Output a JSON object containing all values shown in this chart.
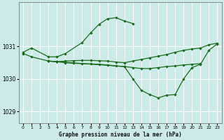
{
  "background_color": "#cceae7",
  "grid_color": "#aaddcc",
  "line_color": "#1a6b1a",
  "title": "Graphe pression niveau de la mer (hPa)",
  "xlim": [
    -0.5,
    23.5
  ],
  "ylim": [
    1028.65,
    1032.35
  ],
  "yticks": [
    1029,
    1030,
    1031
  ],
  "xticks": [
    0,
    1,
    2,
    3,
    4,
    5,
    6,
    7,
    8,
    9,
    10,
    11,
    12,
    13,
    14,
    15,
    16,
    17,
    18,
    19,
    20,
    21,
    22,
    23
  ],
  "serA_x": [
    0,
    1,
    3,
    4,
    5,
    7,
    8,
    9,
    10,
    11,
    12,
    13
  ],
  "serA_y": [
    1030.82,
    1030.95,
    1030.68,
    1030.68,
    1030.78,
    1031.12,
    1031.42,
    1031.68,
    1031.85,
    1031.88,
    1031.78,
    1031.7
  ],
  "serB_x": [
    0,
    1,
    3,
    4,
    5,
    6,
    7,
    8,
    9,
    10,
    11,
    12,
    13,
    14,
    15,
    16,
    17,
    18,
    19,
    20,
    21,
    22,
    23
  ],
  "serB_y": [
    1030.78,
    1030.68,
    1030.55,
    1030.53,
    1030.55,
    1030.56,
    1030.57,
    1030.57,
    1030.56,
    1030.55,
    1030.52,
    1030.5,
    1030.55,
    1030.6,
    1030.65,
    1030.7,
    1030.75,
    1030.82,
    1030.88,
    1030.92,
    1030.95,
    1031.05,
    1031.1
  ],
  "serC_x": [
    3,
    4,
    5,
    6,
    7,
    8,
    9,
    10,
    11,
    12,
    13,
    14,
    15,
    16,
    17,
    18,
    19,
    20,
    21
  ],
  "serC_y": [
    1030.55,
    1030.53,
    1030.5,
    1030.48,
    1030.47,
    1030.46,
    1030.45,
    1030.43,
    1030.4,
    1030.38,
    1030.35,
    1030.32,
    1030.32,
    1030.35,
    1030.38,
    1030.4,
    1030.43,
    1030.45,
    1030.47
  ],
  "serD_x": [
    3,
    4,
    12,
    13,
    14,
    15,
    16,
    17,
    18,
    19,
    20,
    21,
    22,
    23
  ],
  "serD_y": [
    1030.55,
    1030.53,
    1030.38,
    1030.0,
    1029.65,
    1029.52,
    1029.42,
    1029.5,
    1029.52,
    1030.0,
    1030.35,
    1030.45,
    1030.88,
    1031.08
  ]
}
